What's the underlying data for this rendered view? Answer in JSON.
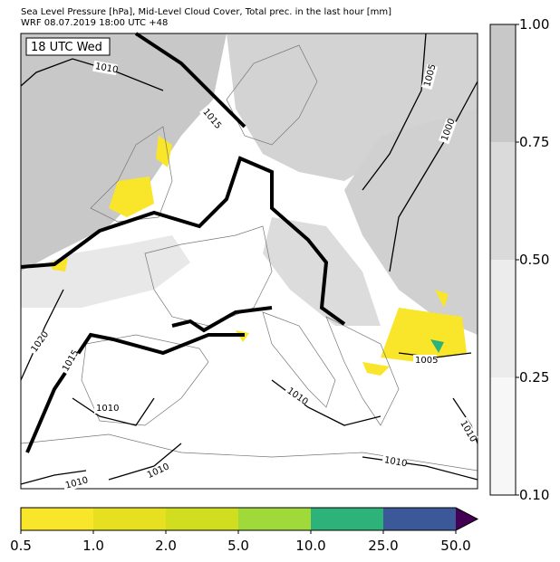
{
  "header": {
    "line1": "Sea Level Pressure [hPa], Mid-Level Cloud Cover, Total prec. in the last hour [mm]",
    "line2": "WRF 08.07.2019 18:00 UTC +48"
  },
  "time_label": "18 UTC Wed",
  "isobar_labels": [
    1010,
    1015,
    1005,
    1000,
    1020,
    1015,
    1010,
    1010,
    1005,
    1010,
    1010,
    1010,
    1010
  ],
  "cloud_colorbar": {
    "colors": [
      "#f7f7f7",
      "#ececec",
      "#dadada",
      "#c8c8c8"
    ],
    "ticks": [
      {
        "value": 0.1,
        "label": "0.10"
      },
      0.25,
      {
        "value": 0.5,
        "label": "0.50"
      },
      0.75,
      {
        "value": 1,
        "label": "1.00"
      }
    ]
  },
  "precip_colorbar": {
    "colors": [
      "#f9e52a",
      "#e6e021",
      "#d0de1f",
      "#a0d93a",
      "#2db37a",
      "#3b5898",
      "#440154"
    ],
    "ticks": [
      0.5,
      {
        "value": 1,
        "label": "1.0"
      },
      {
        "value": 2,
        "label": "2.0"
      },
      {
        "value": 5,
        "label": "5.0"
      },
      {
        "value": 10,
        "label": "10.0"
      },
      {
        "value": 25,
        "label": "25.0"
      },
      {
        "value": 50,
        "label": "50.0"
      }
    ]
  }
}
